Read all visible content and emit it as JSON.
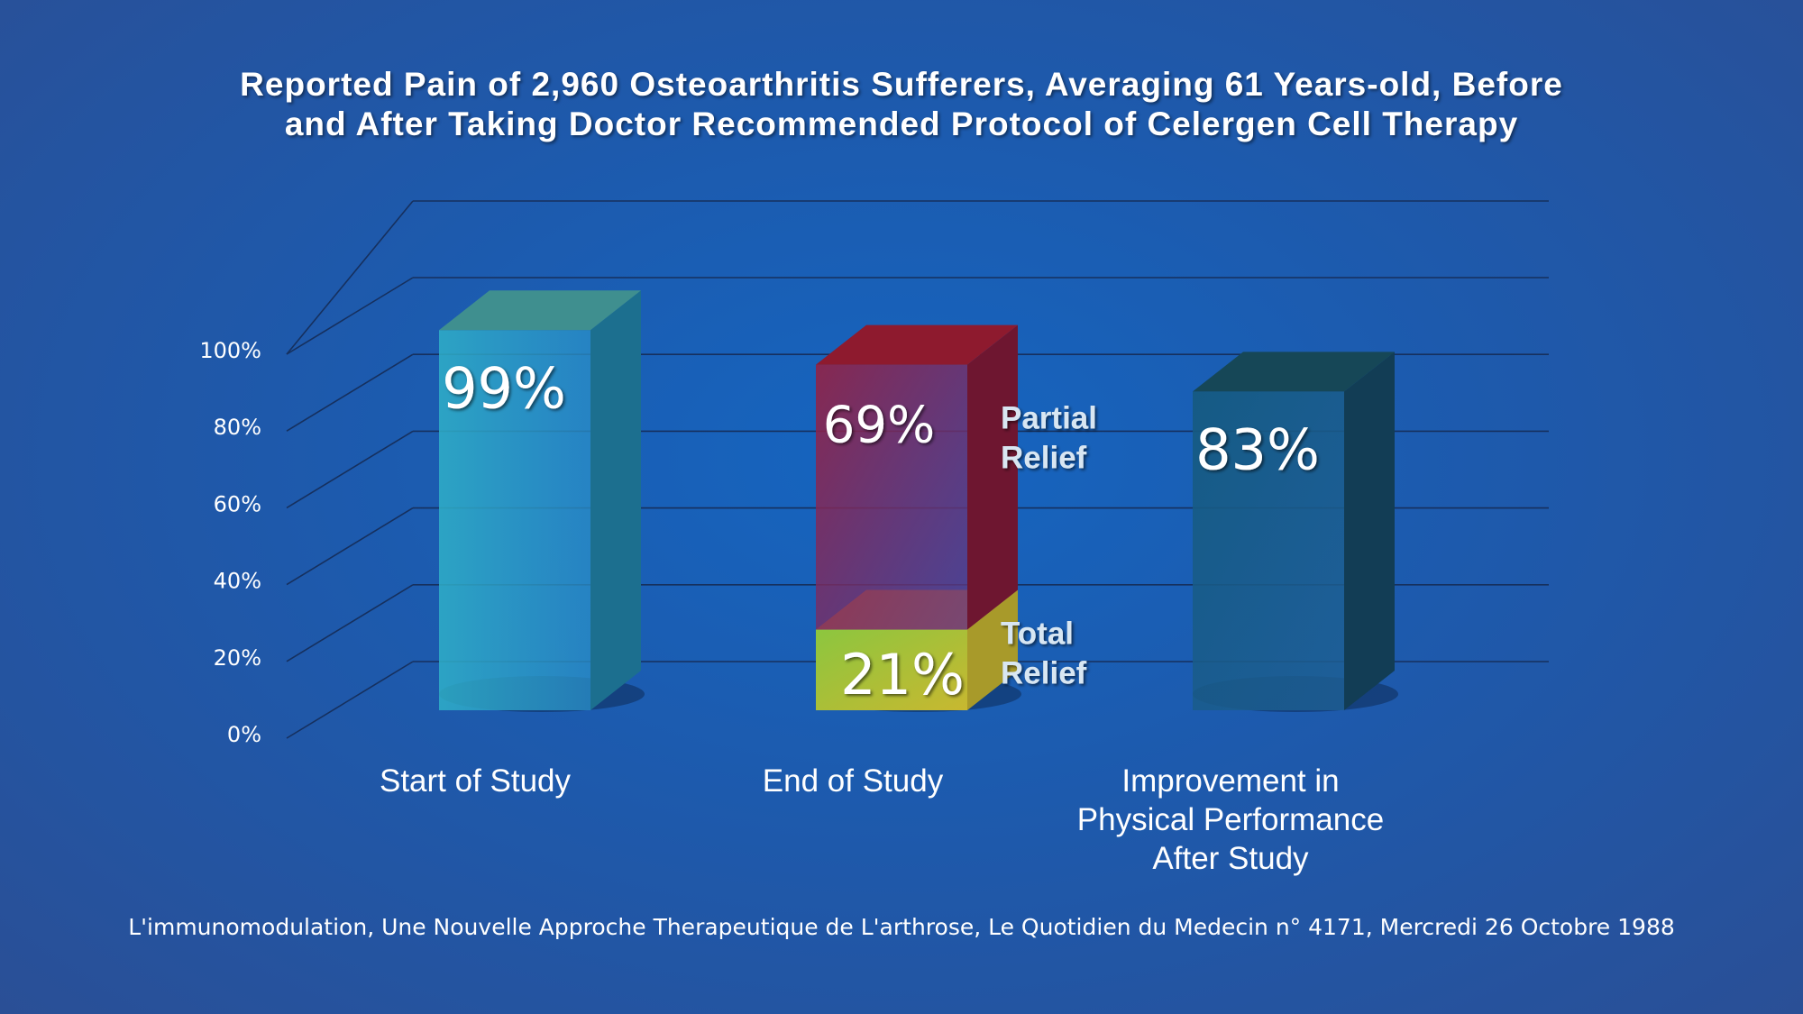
{
  "chart_data": {
    "type": "bar",
    "title_lines": [
      "Reported Pain of 2,960 Osteoarthritis Sufferers, Averaging 61 Years-old, Before",
      "and After Taking Doctor Recommended Protocol of Celergen Cell Therapy"
    ],
    "y_ticks": [
      "0%",
      "20%",
      "40%",
      "60%",
      "80%",
      "100%"
    ],
    "ylim": [
      0,
      100
    ],
    "grid": true,
    "categories": [
      {
        "label_lines": [
          "Start of Study"
        ]
      },
      {
        "label_lines": [
          "End of Study"
        ]
      },
      {
        "label_lines": [
          "Improvement in",
          "Physical Performance",
          "After Study"
        ]
      }
    ],
    "bars": [
      {
        "category": 0,
        "segments": [
          {
            "value": 99,
            "label": "99%",
            "color": "#2aa6d8"
          }
        ]
      },
      {
        "category": 1,
        "segments": [
          {
            "value": 21,
            "label": "21%",
            "color": "#8cc63f",
            "side_label": [
              "Total",
              "Relief"
            ]
          },
          {
            "value": 69,
            "label": "69%",
            "color": "#a01e3c",
            "side_label": [
              "Partial",
              "Relief"
            ]
          }
        ]
      },
      {
        "category": 2,
        "segments": [
          {
            "value": 83,
            "label": "83%",
            "color": "#1a5f8c"
          }
        ]
      }
    ]
  },
  "source": "L'immunomodulation, Une Nouvelle Approche Therapeutique de L'arthrose,  Le Quotidien du Medecin n° 4171, Mercredi 26 Octobre 1988"
}
